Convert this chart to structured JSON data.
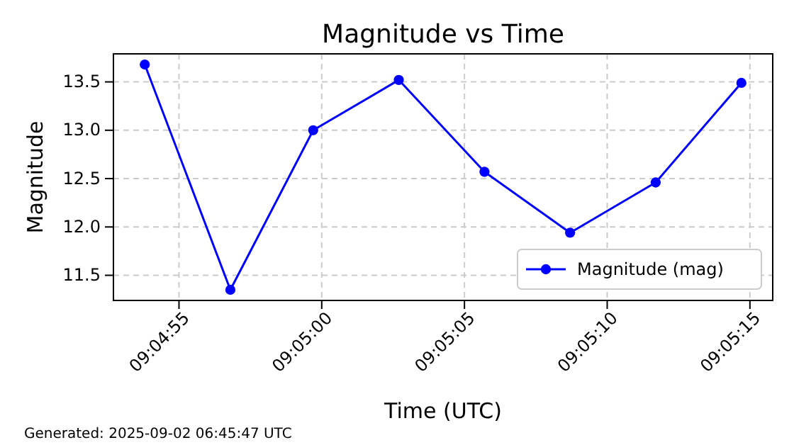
{
  "chart_data": {
    "type": "line",
    "title": "Magnitude vs Time",
    "xlabel": "Time (UTC)",
    "ylabel": "Magnitude",
    "x": [
      9.081611,
      9.082444,
      9.08325,
      9.084083,
      9.084917,
      9.08575,
      9.086583,
      9.087417
    ],
    "series": [
      {
        "name": "Magnitude (mag)",
        "color": "#0000ff",
        "values": [
          13.68,
          11.35,
          13.0,
          13.52,
          12.57,
          11.94,
          12.46,
          13.49
        ]
      }
    ],
    "xlim": [
      9.081306,
      9.087722
    ],
    "xticks": [
      {
        "value": 9.081944,
        "label": "09:04:55"
      },
      {
        "value": 9.083333,
        "label": "09:05:00"
      },
      {
        "value": 9.084722,
        "label": "09:05:05"
      },
      {
        "value": 9.086111,
        "label": "09:05:10"
      },
      {
        "value": 9.0875,
        "label": "09:05:15"
      }
    ],
    "ylim": [
      11.24,
      13.79
    ],
    "yticks": [
      11.5,
      {
        "value": 12,
        "label": "12.0"
      },
      12.5,
      {
        "value": 13,
        "label": "13.0"
      },
      13.5
    ],
    "grid": true,
    "legend": "bottom right",
    "marker": "circle",
    "line_style": "solid",
    "annotations": [
      "Generated: 2025-09-02 06:45:47 UTC"
    ]
  }
}
